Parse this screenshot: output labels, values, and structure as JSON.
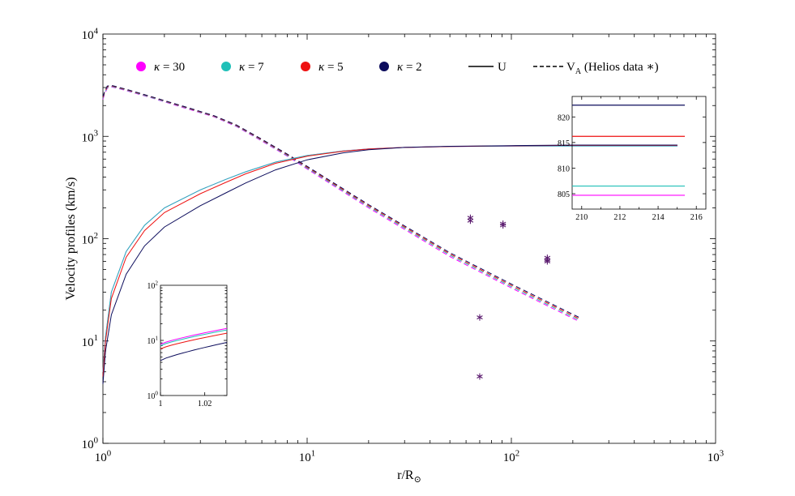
{
  "chart_data": {
    "type": "line",
    "x_scale": "log",
    "y_scale": "log",
    "xlim": [
      1,
      1000
    ],
    "ylim": [
      1,
      10000
    ],
    "xlabel_base": "r/R",
    "xlabel_sub": "⊙",
    "ylabel": "Velocity profiles  (km/s)",
    "x_ticks": [
      {
        "value": 1,
        "base": "10",
        "exp": "0"
      },
      {
        "value": 10,
        "base": "10",
        "exp": "1"
      },
      {
        "value": 100,
        "base": "10",
        "exp": "2"
      },
      {
        "value": 1000,
        "base": "10",
        "exp": "3"
      }
    ],
    "y_ticks": [
      {
        "value": 1,
        "base": "10",
        "exp": "0"
      },
      {
        "value": 10,
        "base": "10",
        "exp": "1"
      },
      {
        "value": 100,
        "base": "10",
        "exp": "2"
      },
      {
        "value": 1000,
        "base": "10",
        "exp": "3"
      },
      {
        "value": 10000,
        "base": "10",
        "exp": "4"
      }
    ],
    "legend": {
      "position": "top",
      "entries": [
        {
          "kind": "marker",
          "symbol": "κ",
          "value": " = 30",
          "color": "#ff00ff"
        },
        {
          "kind": "marker",
          "symbol": "κ",
          "value": " = 7",
          "color": "#20c0b8"
        },
        {
          "kind": "marker",
          "symbol": "κ",
          "value": " = 5",
          "color": "#ee1111"
        },
        {
          "kind": "marker",
          "symbol": "κ",
          "value": " = 2",
          "color": "#0c0c5c"
        },
        {
          "kind": "solid",
          "label": "U"
        },
        {
          "kind": "dashed",
          "label": "V",
          "sub": "A",
          "after": " (Helios data  ∗)"
        }
      ]
    },
    "series": [
      {
        "name": "κ = 30",
        "color": "#ff00ff",
        "U": [
          [
            1,
            5
          ],
          [
            1.03,
            11
          ],
          [
            1.1,
            30
          ],
          [
            1.3,
            75
          ],
          [
            1.6,
            135
          ],
          [
            2,
            200
          ],
          [
            3,
            300
          ],
          [
            4,
            380
          ],
          [
            5,
            450
          ],
          [
            7,
            560
          ],
          [
            10,
            650
          ],
          [
            15,
            720
          ],
          [
            20,
            755
          ],
          [
            30,
            780
          ],
          [
            50,
            795
          ],
          [
            100,
            803
          ],
          [
            200,
            805
          ],
          [
            650,
            805
          ]
        ],
        "VA": [
          [
            1,
            2300
          ],
          [
            1.02,
            2600
          ],
          [
            1.05,
            2950
          ],
          [
            1.1,
            3050
          ],
          [
            1.3,
            2800
          ],
          [
            1.7,
            2400
          ],
          [
            2.5,
            1900
          ],
          [
            3.5,
            1550
          ],
          [
            4.5,
            1250
          ],
          [
            6,
            900
          ],
          [
            8,
            640
          ],
          [
            10,
            480
          ],
          [
            20,
            200
          ],
          [
            50,
            67
          ],
          [
            100,
            33
          ],
          [
            215,
            15.5
          ]
        ]
      },
      {
        "name": "κ = 7",
        "color": "#20c0b8",
        "U": [
          [
            1,
            5
          ],
          [
            1.03,
            11
          ],
          [
            1.1,
            30
          ],
          [
            1.3,
            75
          ],
          [
            1.6,
            135
          ],
          [
            2,
            200
          ],
          [
            3,
            300
          ],
          [
            4,
            380
          ],
          [
            5,
            450
          ],
          [
            7,
            560
          ],
          [
            10,
            650
          ],
          [
            15,
            720
          ],
          [
            20,
            755
          ],
          [
            30,
            780
          ],
          [
            50,
            795
          ],
          [
            100,
            803
          ],
          [
            200,
            806
          ],
          [
            650,
            806
          ]
        ],
        "VA": [
          [
            1,
            2350
          ],
          [
            1.02,
            2650
          ],
          [
            1.05,
            3000
          ],
          [
            1.1,
            3080
          ],
          [
            1.3,
            2830
          ],
          [
            1.7,
            2420
          ],
          [
            2.5,
            1920
          ],
          [
            3.5,
            1565
          ],
          [
            4.5,
            1265
          ],
          [
            6,
            912
          ],
          [
            8,
            650
          ],
          [
            10,
            490
          ],
          [
            20,
            205
          ],
          [
            50,
            69
          ],
          [
            100,
            34
          ],
          [
            215,
            16
          ]
        ]
      },
      {
        "name": "κ = 5",
        "color": "#ee1111",
        "U": [
          [
            1,
            4.5
          ],
          [
            1.03,
            10
          ],
          [
            1.1,
            26
          ],
          [
            1.3,
            66
          ],
          [
            1.6,
            120
          ],
          [
            2,
            180
          ],
          [
            3,
            275
          ],
          [
            4,
            355
          ],
          [
            5,
            430
          ],
          [
            7,
            545
          ],
          [
            10,
            640
          ],
          [
            15,
            715
          ],
          [
            20,
            752
          ],
          [
            30,
            780
          ],
          [
            50,
            797
          ],
          [
            100,
            808
          ],
          [
            200,
            816
          ],
          [
            650,
            816
          ]
        ],
        "VA": [
          [
            1,
            2400
          ],
          [
            1.02,
            2700
          ],
          [
            1.05,
            3050
          ],
          [
            1.1,
            3120
          ],
          [
            1.3,
            2860
          ],
          [
            1.7,
            2450
          ],
          [
            2.5,
            1940
          ],
          [
            3.5,
            1580
          ],
          [
            4.5,
            1280
          ],
          [
            6,
            925
          ],
          [
            8,
            660
          ],
          [
            10,
            500
          ],
          [
            20,
            210
          ],
          [
            50,
            71
          ],
          [
            100,
            35
          ],
          [
            215,
            16.5
          ]
        ]
      },
      {
        "name": "κ = 2",
        "color": "#0c0c5c",
        "U": [
          [
            1,
            3.8
          ],
          [
            1.03,
            8
          ],
          [
            1.1,
            18
          ],
          [
            1.3,
            45
          ],
          [
            1.6,
            85
          ],
          [
            2,
            130
          ],
          [
            3,
            210
          ],
          [
            4,
            280
          ],
          [
            5,
            350
          ],
          [
            7,
            470
          ],
          [
            10,
            590
          ],
          [
            15,
            690
          ],
          [
            20,
            740
          ],
          [
            30,
            780
          ],
          [
            50,
            800
          ],
          [
            100,
            812
          ],
          [
            200,
            822
          ],
          [
            650,
            822
          ]
        ],
        "VA": [
          [
            1,
            2450
          ],
          [
            1.02,
            2750
          ],
          [
            1.05,
            3100
          ],
          [
            1.1,
            3150
          ],
          [
            1.3,
            2890
          ],
          [
            1.7,
            2470
          ],
          [
            2.5,
            1960
          ],
          [
            3.5,
            1595
          ],
          [
            4.5,
            1295
          ],
          [
            6,
            938
          ],
          [
            8,
            670
          ],
          [
            10,
            510
          ],
          [
            20,
            215
          ],
          [
            50,
            73
          ],
          [
            100,
            36
          ],
          [
            215,
            17
          ]
        ]
      }
    ],
    "helios_points": [
      [
        63,
        160
      ],
      [
        63,
        150
      ],
      [
        70,
        17
      ],
      [
        70,
        4.5
      ],
      [
        91,
        140
      ],
      [
        91,
        135
      ],
      [
        150,
        65
      ],
      [
        150,
        62
      ],
      [
        150,
        60
      ]
    ],
    "helios_color": "#5a1a6e",
    "insets": [
      {
        "id": "inset-low",
        "xlim": [
          1,
          1.03
        ],
        "ylim": [
          1,
          100
        ],
        "y_scale": "log",
        "x_ticks": [
          {
            "value": 1,
            "label": "1"
          },
          {
            "value": 1.02,
            "label": "1.02"
          }
        ],
        "y_ticks": [
          {
            "value": 1,
            "base": "10",
            "exp": "0"
          },
          {
            "value": 10,
            "base": "10",
            "exp": "1"
          },
          {
            "value": 100,
            "base": "10",
            "exp": "2"
          }
        ],
        "lines": [
          {
            "color": "#ff00ff",
            "y": [
              8.5,
              16.5
            ]
          },
          {
            "color": "#20c0b8",
            "y": [
              8,
              15.5
            ]
          },
          {
            "color": "#ee1111",
            "y": [
              7,
              13.5
            ]
          },
          {
            "color": "#0c0c5c",
            "y": [
              4.3,
              9.2
            ]
          }
        ]
      },
      {
        "id": "inset-high",
        "xlim": [
          209.5,
          216.5
        ],
        "ylim": [
          802,
          824
        ],
        "y_scale": "linear",
        "x_ticks": [
          {
            "value": 210,
            "label": "210"
          },
          {
            "value": 212,
            "label": "212"
          },
          {
            "value": 214,
            "label": "214"
          },
          {
            "value": 216,
            "label": "216"
          }
        ],
        "y_ticks": [
          {
            "value": 805,
            "label": "805"
          },
          {
            "value": 810,
            "label": "810"
          },
          {
            "value": 815,
            "label": "815"
          },
          {
            "value": 820,
            "label": "820"
          }
        ],
        "line_x": [
          209.5,
          215.4
        ],
        "lines": [
          {
            "color": "#ff00ff",
            "y": 804.7
          },
          {
            "color": "#20c0b8",
            "y": 806.5
          },
          {
            "color": "#ee1111",
            "y": 816.2
          },
          {
            "color": "#0c0c5c",
            "y": 822.3
          }
        ]
      }
    ]
  }
}
